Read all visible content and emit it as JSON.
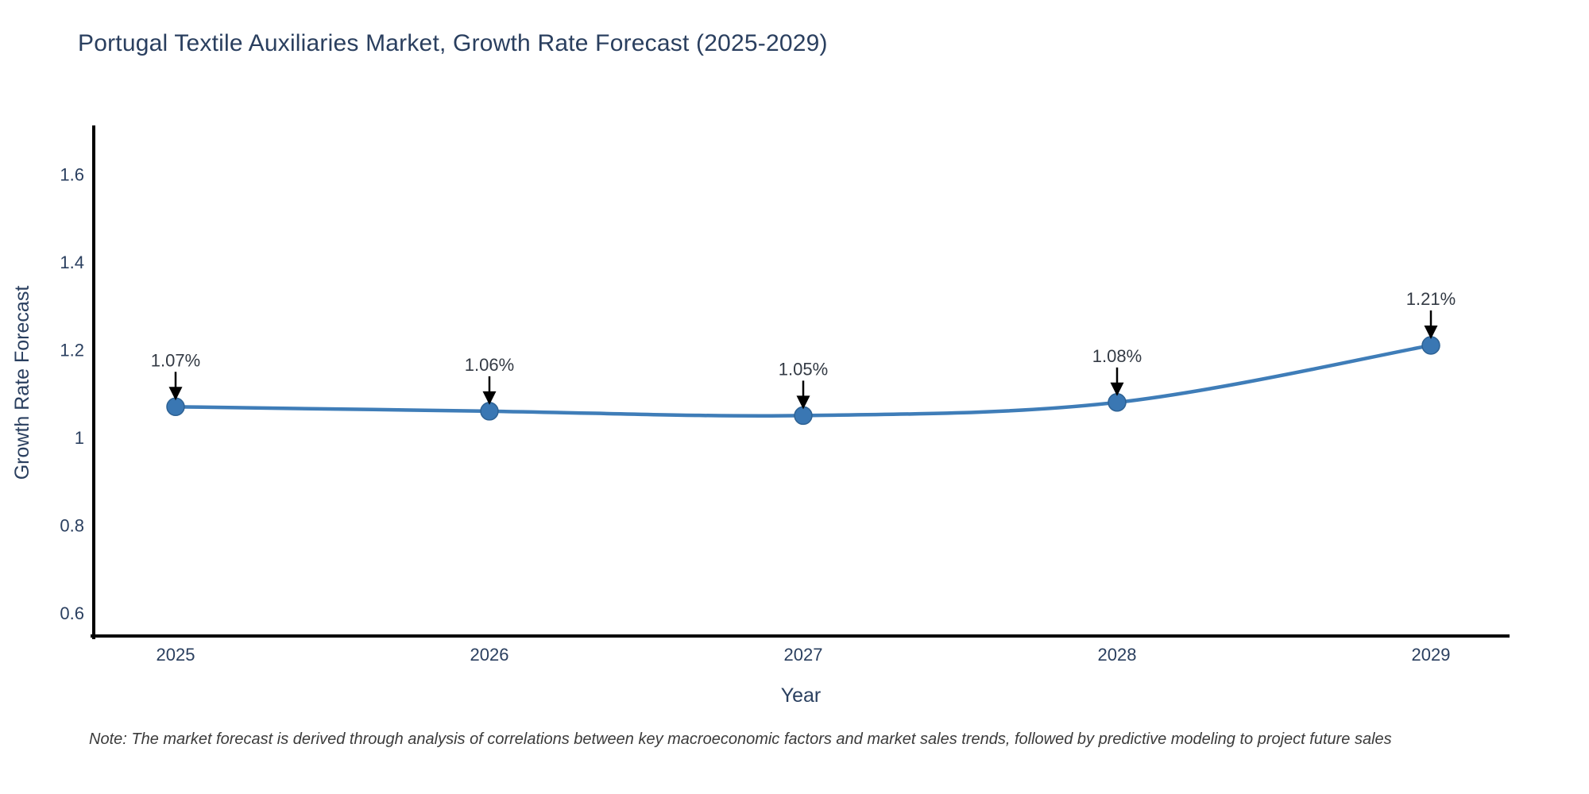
{
  "title": "Portugal Textile Auxiliaries Market, Growth Rate Forecast (2025-2029)",
  "note": "Note: The market forecast is derived through analysis of correlations between key macroeconomic factors and market sales trends, followed by predictive modeling to project future sales",
  "chart_data": {
    "type": "line",
    "categories": [
      "2025",
      "2026",
      "2027",
      "2028",
      "2029"
    ],
    "series": [
      {
        "name": "Growth Rate Forecast",
        "values": [
          1.07,
          1.06,
          1.05,
          1.08,
          1.21
        ],
        "point_labels": [
          "1.07%",
          "1.06%",
          "1.05%",
          "1.08%",
          "1.21%"
        ]
      }
    ],
    "xlabel": "Year",
    "ylabel": "Growth Rate Forecast",
    "yticks": [
      0.6,
      0.8,
      1,
      1.2,
      1.4,
      1.6
    ],
    "ylim": [
      0.55,
      1.71
    ],
    "grid": false,
    "legend": false,
    "line_shape": "spline",
    "colors": {
      "line": "#3f7db8",
      "marker_fill": "#3a77b3",
      "marker_stroke": "#2e6294",
      "axis": "#000000",
      "axis_text": "#2a3f5f",
      "annotation_text": "#333a44",
      "annotation_arrow": "#000000",
      "background": "#ffffff"
    }
  }
}
